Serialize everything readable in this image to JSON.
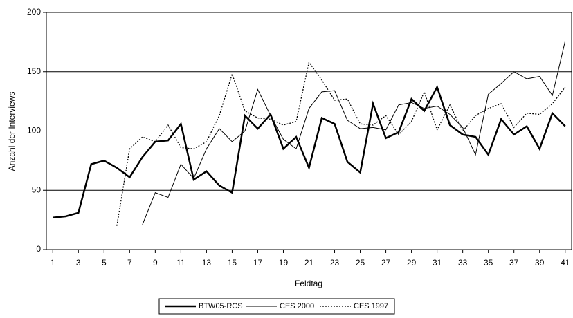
{
  "chart_data": {
    "type": "line",
    "x_label": "Feldtag",
    "y_label": "Anzahl der Interviews",
    "x": [
      1,
      2,
      3,
      4,
      5,
      6,
      7,
      8,
      9,
      10,
      11,
      12,
      13,
      14,
      15,
      16,
      17,
      18,
      19,
      20,
      21,
      22,
      23,
      24,
      25,
      26,
      27,
      28,
      29,
      30,
      31,
      32,
      33,
      34,
      35,
      36,
      37,
      38,
      39,
      40,
      41
    ],
    "xlim": [
      0.5,
      41.5
    ],
    "xticks": [
      1,
      3,
      5,
      7,
      9,
      11,
      13,
      15,
      17,
      19,
      21,
      23,
      25,
      27,
      29,
      31,
      33,
      35,
      37,
      39,
      41
    ],
    "ylim": [
      0,
      200
    ],
    "yticks": [
      0,
      50,
      100,
      150,
      200
    ],
    "grid": true,
    "legend": "bottom",
    "series": [
      {
        "name": "BTW05-RCS",
        "color": "#000000",
        "width": 2.5,
        "style": "solid",
        "values": [
          27,
          28,
          31,
          72,
          75,
          69,
          61,
          78,
          91,
          92,
          106,
          59,
          66,
          54,
          48,
          113,
          102,
          114,
          85,
          95,
          69,
          111,
          106,
          74,
          65,
          123,
          94,
          99,
          127,
          117,
          137,
          105,
          97,
          95,
          80,
          110,
          97,
          104,
          85,
          115,
          104
        ]
      },
      {
        "name": "CES 2000",
        "color": "#000000",
        "width": 1,
        "style": "solid",
        "values": [
          null,
          null,
          null,
          null,
          null,
          null,
          null,
          21,
          48,
          44,
          72,
          60,
          85,
          102,
          91,
          100,
          135,
          113,
          93,
          85,
          119,
          133,
          134,
          109,
          102,
          103,
          101,
          122,
          124,
          119,
          121,
          114,
          103,
          80,
          131,
          140,
          150,
          144,
          146,
          130,
          176
        ]
      },
      {
        "name": "CES 1997",
        "color": "#000000",
        "width": 1.3,
        "style": "dotted",
        "values": [
          null,
          null,
          null,
          null,
          null,
          20,
          85,
          95,
          91,
          105,
          86,
          85,
          91,
          113,
          148,
          117,
          111,
          110,
          105,
          108,
          158,
          143,
          126,
          127,
          106,
          105,
          113,
          97,
          108,
          133,
          101,
          122,
          100,
          113,
          119,
          123,
          103,
          115,
          114,
          123,
          137
        ]
      }
    ]
  }
}
